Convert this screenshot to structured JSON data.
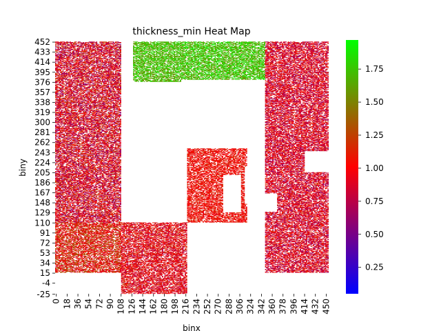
{
  "chart_data": {
    "type": "heatmap",
    "title": "thickness_min Heat Map",
    "xlabel": "binx",
    "ylabel": "biny",
    "x_tick_labels": [
      "0",
      "18",
      "36",
      "54",
      "72",
      "90",
      "108",
      "126",
      "144",
      "162",
      "180",
      "198",
      "216",
      "234",
      "252",
      "270",
      "288",
      "306",
      "324",
      "342",
      "360",
      "378",
      "396",
      "414",
      "432",
      "450"
    ],
    "y_tick_labels": [
      "452",
      "433",
      "414",
      "395",
      "376",
      "357",
      "338",
      "319",
      "300",
      "281",
      "262",
      "243",
      "224",
      "205",
      "186",
      "167",
      "148",
      "129",
      "110",
      "91",
      "72",
      "53",
      "34",
      "15",
      "-4",
      "-25"
    ],
    "x_range": [
      0,
      455
    ],
    "y_range": [
      -25,
      455
    ],
    "colorbar": {
      "tick_labels": [
        "1.75",
        "1.50",
        "1.25",
        "1.00",
        "0.75",
        "0.50",
        "0.25"
      ],
      "tick_values": [
        1.75,
        1.5,
        1.25,
        1.0,
        0.75,
        0.5,
        0.25
      ],
      "range": [
        0.05,
        1.97
      ],
      "colormap": [
        "#0000ff",
        "#ff0000",
        "#00ff00"
      ]
    },
    "legend": "colorbar-right",
    "grid": false,
    "data_regions": [
      {
        "x_range": [
          0,
          110
        ],
        "y_range": [
          15,
          110
        ],
        "value_range": [
          0.8,
          1.4
        ]
      },
      {
        "x_range": [
          0,
          110
        ],
        "y_range": [
          110,
          452
        ],
        "value_range": [
          0.55,
          1.3
        ]
      },
      {
        "x_range": [
          110,
          220
        ],
        "y_range": [
          -25,
          110
        ],
        "value_range": [
          0.7,
          1.25
        ]
      },
      {
        "x_range": [
          130,
          210
        ],
        "y_range": [
          376,
          452
        ],
        "value_range": [
          1.5,
          1.9
        ]
      },
      {
        "x_range": [
          210,
          350
        ],
        "y_range": [
          380,
          452
        ],
        "value_range": [
          1.5,
          1.95
        ]
      },
      {
        "x_range": [
          220,
          320
        ],
        "y_range": [
          110,
          250
        ],
        "value_range": [
          0.9,
          1.2
        ]
      },
      {
        "x_range": [
          350,
          455
        ],
        "y_range": [
          15,
          452
        ],
        "value_range": [
          0.6,
          1.2
        ]
      }
    ],
    "empty_regions": [
      {
        "x_range": [
          280,
          310
        ],
        "y_range": [
          129,
          200
        ]
      },
      {
        "x_range": [
          315,
          345
        ],
        "y_range": [
          145,
          215
        ]
      },
      {
        "x_range": [
          345,
          370
        ],
        "y_range": [
          130,
          165
        ]
      },
      {
        "x_range": [
          415,
          455
        ],
        "y_range": [
          205,
          245
        ]
      },
      {
        "x_range": [
          190,
          220
        ],
        "y_range": [
          200,
          260
        ]
      }
    ]
  }
}
